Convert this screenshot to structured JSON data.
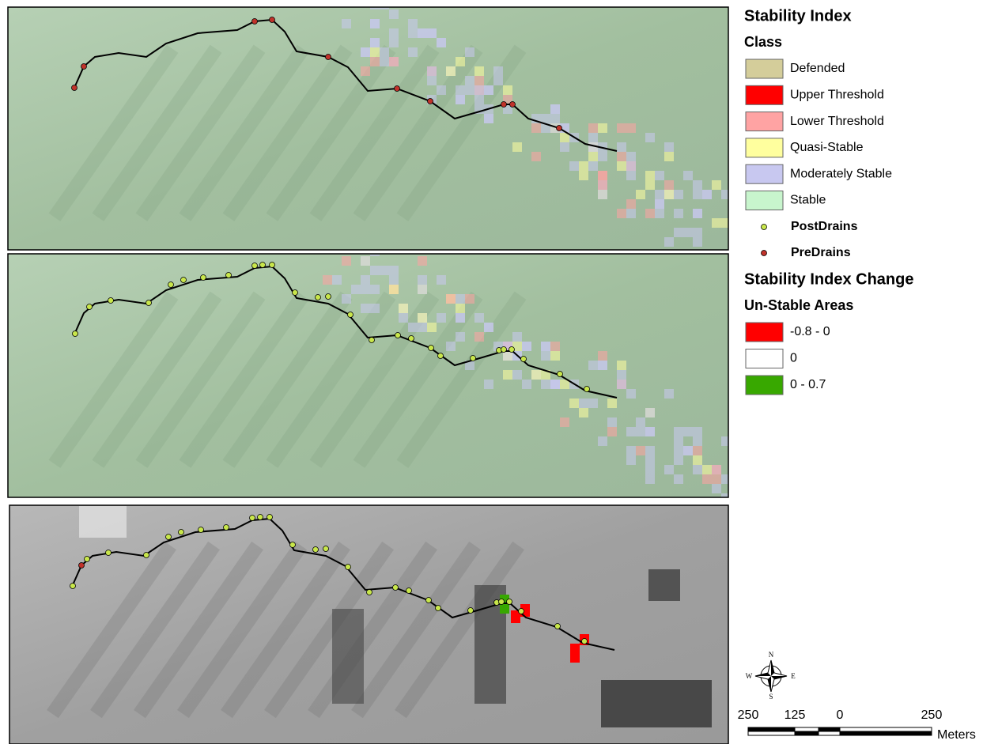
{
  "legend": {
    "title": "Stability Index",
    "subtitle": "Class",
    "classes": [
      {
        "label": "Defended",
        "color": "#d4cd9a"
      },
      {
        "label": "Upper Threshold",
        "color": "#ff0000"
      },
      {
        "label": "Lower Threshold",
        "color": "#ffa3a3"
      },
      {
        "label": "Quasi-Stable",
        "color": "#ffff9e"
      },
      {
        "label": "Moderately Stable",
        "color": "#c8c8f0"
      },
      {
        "label": "Stable",
        "color": "#c8f5cd"
      }
    ],
    "points": [
      {
        "label": "PostDrains",
        "color": "#c8e64b"
      },
      {
        "label": "PreDrains",
        "color": "#c0322a"
      }
    ]
  },
  "change_legend": {
    "title": "Stability Index Change",
    "subtitle": "Un-Stable Areas",
    "classes": [
      {
        "label": "-0.8 - 0",
        "color": "#ff0000"
      },
      {
        "label": "0",
        "color": "#ffffff"
      },
      {
        "label": "0 - 0.7",
        "color": "#38a800"
      }
    ]
  },
  "scale_bar": {
    "ticks": [
      "250",
      "125",
      "0",
      "250"
    ],
    "unit": "Meters"
  },
  "compass": {
    "n": "N",
    "s": "S",
    "e": "E",
    "w": "W"
  }
}
